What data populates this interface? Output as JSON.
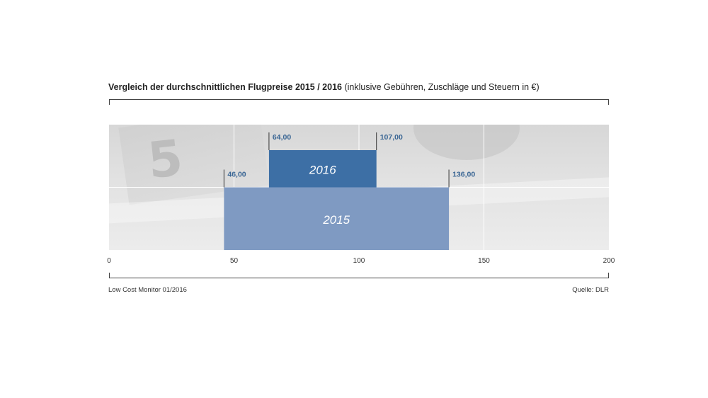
{
  "title_bold": "Vergleich der durchschnittlichen Flugpreise 2015 / 2016",
  "title_normal": " (inklusive Gebühren, Zuschläge und Steuern in €)",
  "footer": {
    "source_left": "Low Cost Monitor 01/2016",
    "source_right": "Quelle: DLR"
  },
  "colors": {
    "bar_2016": "#3d6fa5",
    "bar_2015": "#7f9ac2",
    "value_label": "#3a6694",
    "gridline": "#ffffff"
  },
  "chart_data": {
    "type": "bar",
    "orientation": "horizontal-range",
    "title": "Vergleich der durchschnittlichen Flugpreise 2015 / 2016 (inklusive Gebühren, Zuschläge und Steuern in €)",
    "xlim": [
      0,
      200
    ],
    "xticks": [
      "0",
      "50",
      "100",
      "150",
      "200"
    ],
    "grid": true,
    "series": [
      {
        "name": "2016",
        "min": 64.0,
        "max": 107.0,
        "min_label": "64,00",
        "max_label": "107,00"
      },
      {
        "name": "2015",
        "min": 46.0,
        "max": 136.0,
        "min_label": "46,00",
        "max_label": "136,00"
      }
    ]
  }
}
